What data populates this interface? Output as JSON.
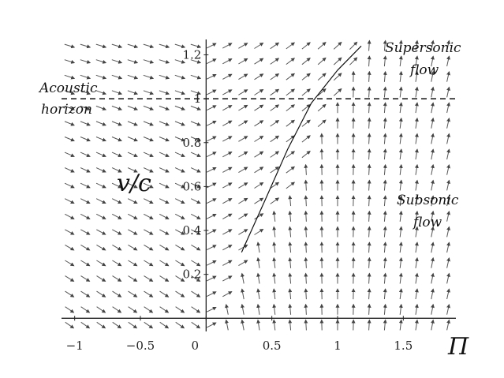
{
  "chart_data": {
    "type": "vector_field",
    "title": "",
    "xlabel": "Π",
    "ylabel": "v/c",
    "xlim": [
      -1.1,
      1.9
    ],
    "ylim": [
      -0.06,
      1.27
    ],
    "x_ticks": [
      {
        "value": -1,
        "label": "−1"
      },
      {
        "value": -0.5,
        "label": "−0.5"
      },
      {
        "value": 0,
        "label": "0"
      },
      {
        "value": 0.5,
        "label": "0.5"
      },
      {
        "value": 1,
        "label": "1"
      },
      {
        "value": 1.5,
        "label": "1.5"
      }
    ],
    "y_ticks": [
      {
        "value": 0.2,
        "label": "0.2"
      },
      {
        "value": 0.4,
        "label": "0.4"
      },
      {
        "value": 0.6,
        "label": "0.6"
      },
      {
        "value": 0.8,
        "label": "0.8"
      },
      {
        "value": 1,
        "label": "1"
      },
      {
        "value": 1.2,
        "label": "1.2"
      }
    ],
    "horizon": {
      "y": 1.0,
      "style": "dashed"
    },
    "separatrix": [
      [
        0.27,
        0.3
      ],
      [
        0.45,
        0.54
      ],
      [
        0.62,
        0.77
      ],
      [
        0.8,
        0.98
      ],
      [
        1.0,
        1.13
      ],
      [
        1.18,
        1.24
      ]
    ],
    "annotations": [
      {
        "lines": [
          "Supersonic",
          "flow"
        ],
        "region": "top-right"
      },
      {
        "lines": [
          "Acoustic",
          "horizon"
        ],
        "region": "left at v/c = 1"
      },
      {
        "lines": [
          "Subsonic",
          "flow"
        ],
        "region": "right-middle"
      }
    ],
    "grid": false,
    "legend": "none"
  }
}
